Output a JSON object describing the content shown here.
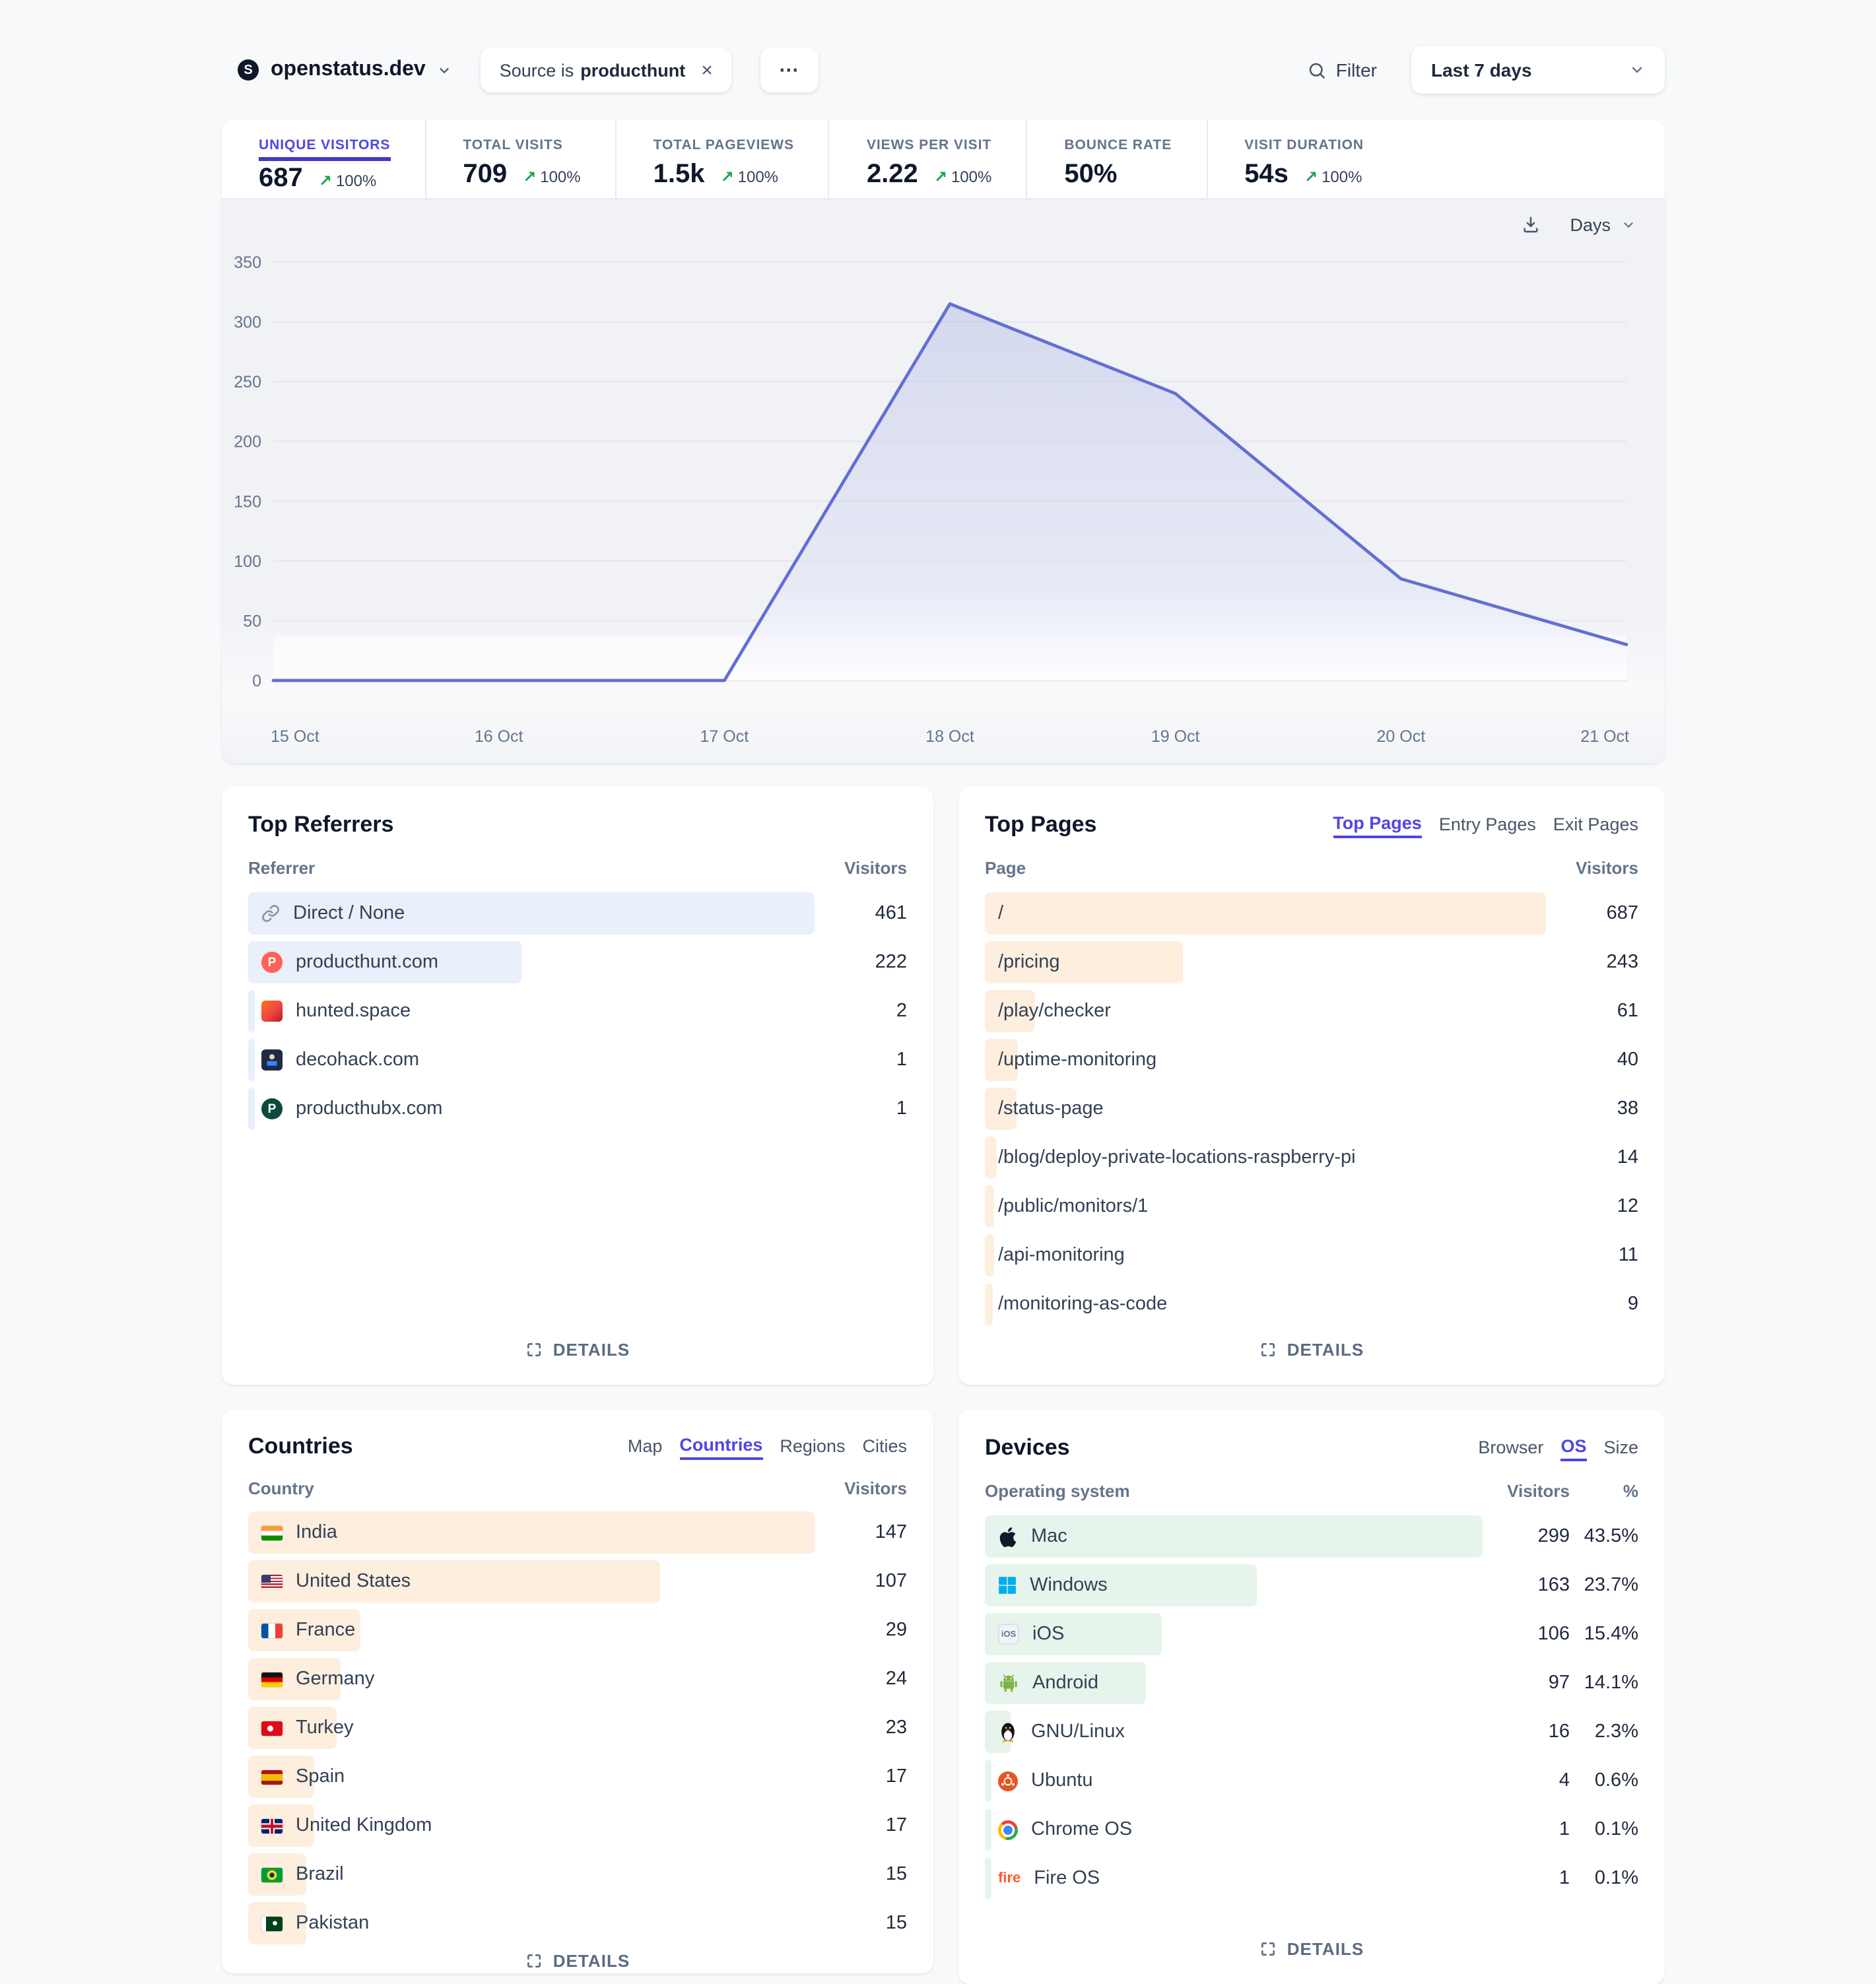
{
  "header": {
    "site_name": "openstatus.dev",
    "filter_chip": {
      "prefix": "Source is",
      "value": "producthunt",
      "close_label": "×"
    },
    "more_label": "⋯",
    "filter_label": "Filter",
    "date_range": "Last 7 days"
  },
  "stats": [
    {
      "label": "UNIQUE VISITORS",
      "value": "687",
      "change": "100%",
      "active": true
    },
    {
      "label": "TOTAL VISITS",
      "value": "709",
      "change": "100%",
      "active": false
    },
    {
      "label": "TOTAL PAGEVIEWS",
      "value": "1.5k",
      "change": "100%",
      "active": false
    },
    {
      "label": "VIEWS PER VISIT",
      "value": "2.22",
      "change": "100%",
      "active": false
    },
    {
      "label": "BOUNCE RATE",
      "value": "50%",
      "change": null,
      "active": false
    },
    {
      "label": "VISIT DURATION",
      "value": "54s",
      "change": "100%",
      "active": false
    }
  ],
  "chart_data": {
    "type": "area",
    "title": "Unique visitors over time",
    "x": [
      "15 Oct",
      "16 Oct",
      "17 Oct",
      "18 Oct",
      "19 Oct",
      "20 Oct",
      "21 Oct"
    ],
    "values": [
      0,
      0,
      0,
      315,
      240,
      85,
      30
    ],
    "ylim": [
      0,
      350
    ],
    "ytick_step": 50,
    "grid": true,
    "interval_label": "Days"
  },
  "panels": {
    "referrers": {
      "title": "Top Referrers",
      "col_left": "Referrer",
      "col_right": "Visitors",
      "details_label": "DETAILS",
      "rows": [
        {
          "icon": "link-icon",
          "label": "Direct / None",
          "value": 461
        },
        {
          "icon": "producthunt-icon",
          "label": "producthunt.com",
          "value": 222
        },
        {
          "icon": "hunted-icon",
          "label": "hunted.space",
          "value": 2
        },
        {
          "icon": "decohack-icon",
          "label": "decohack.com",
          "value": 1
        },
        {
          "icon": "producthubx-icon",
          "label": "producthubx.com",
          "value": 1
        }
      ]
    },
    "pages": {
      "title": "Top Pages",
      "tabs": [
        {
          "label": "Top Pages",
          "active": true
        },
        {
          "label": "Entry Pages",
          "active": false
        },
        {
          "label": "Exit Pages",
          "active": false
        }
      ],
      "col_left": "Page",
      "col_right": "Visitors",
      "details_label": "DETAILS",
      "rows": [
        {
          "label": "/",
          "value": 687
        },
        {
          "label": "/pricing",
          "value": 243
        },
        {
          "label": "/play/checker",
          "value": 61
        },
        {
          "label": "/uptime-monitoring",
          "value": 40
        },
        {
          "label": "/status-page",
          "value": 38
        },
        {
          "label": "/blog/deploy-private-locations-raspberry-pi",
          "value": 14
        },
        {
          "label": "/public/monitors/1",
          "value": 12
        },
        {
          "label": "/api-monitoring",
          "value": 11
        },
        {
          "label": "/monitoring-as-code",
          "value": 9
        }
      ]
    },
    "countries": {
      "title": "Countries",
      "tabs": [
        {
          "label": "Map",
          "active": false
        },
        {
          "label": "Countries",
          "active": true
        },
        {
          "label": "Regions",
          "active": false
        },
        {
          "label": "Cities",
          "active": false
        }
      ],
      "col_left": "Country",
      "col_right": "Visitors",
      "details_label": "DETAILS",
      "rows": [
        {
          "flag": "in",
          "label": "India",
          "value": 147
        },
        {
          "flag": "us",
          "label": "United States",
          "value": 107
        },
        {
          "flag": "fr",
          "label": "France",
          "value": 29
        },
        {
          "flag": "de",
          "label": "Germany",
          "value": 24
        },
        {
          "flag": "tr",
          "label": "Turkey",
          "value": 23
        },
        {
          "flag": "es",
          "label": "Spain",
          "value": 17
        },
        {
          "flag": "gb",
          "label": "United Kingdom",
          "value": 17
        },
        {
          "flag": "br",
          "label": "Brazil",
          "value": 15
        },
        {
          "flag": "pk",
          "label": "Pakistan",
          "value": 15
        }
      ]
    },
    "devices": {
      "title": "Devices",
      "tabs": [
        {
          "label": "Browser",
          "active": false
        },
        {
          "label": "OS",
          "active": true
        },
        {
          "label": "Size",
          "active": false
        }
      ],
      "col_left": "Operating system",
      "col_right": "Visitors",
      "col_right2": "%",
      "details_label": "DETAILS",
      "rows": [
        {
          "icon": "apple-icon",
          "label": "Mac",
          "value": 299,
          "pct": "43.5%"
        },
        {
          "icon": "windows-icon",
          "label": "Windows",
          "value": 163,
          "pct": "23.7%"
        },
        {
          "icon": "ios-icon",
          "label": "iOS",
          "value": 106,
          "pct": "15.4%"
        },
        {
          "icon": "android-icon",
          "label": "Android",
          "value": 97,
          "pct": "14.1%"
        },
        {
          "icon": "linux-icon",
          "label": "GNU/Linux",
          "value": 16,
          "pct": "2.3%"
        },
        {
          "icon": "ubuntu-icon",
          "label": "Ubuntu",
          "value": 4,
          "pct": "0.6%"
        },
        {
          "icon": "chrome-icon",
          "label": "Chrome OS",
          "value": 1,
          "pct": "0.1%"
        },
        {
          "icon": "fireos-icon",
          "label": "Fire OS",
          "value": 1,
          "pct": "0.1%"
        }
      ]
    }
  },
  "colors": {
    "accent": "#4f46e5",
    "positive": "#16a34a",
    "chart_line": "#636fd2",
    "referrer_bar": "#e9effb",
    "page_bar": "#fdeede",
    "country_bar": "#fdeede",
    "device_bar": "#e7f4ec",
    "shade": "#eef0f3"
  }
}
